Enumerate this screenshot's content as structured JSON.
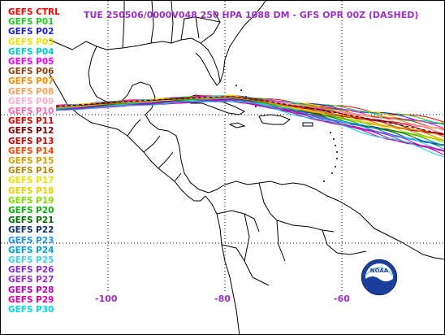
{
  "title": "TUE 250506/0000V048  250 HPA 1088 DM - GFS OPR 00Z (DASHED)",
  "legend": [
    {
      "label": "GEFS CTRL",
      "color": "#ff0000"
    },
    {
      "label": "GEFS P01",
      "color": "#22cc22"
    },
    {
      "label": "GEFS P02",
      "color": "#2020d0"
    },
    {
      "label": "GEFS P03",
      "color": "#f0e000"
    },
    {
      "label": "GEFS P04",
      "color": "#00c8c8"
    },
    {
      "label": "GEFS P05",
      "color": "#ff00ff"
    },
    {
      "label": "GEFS P06",
      "color": "#8b4513"
    },
    {
      "label": "GEFS P07",
      "color": "#ff8c00"
    },
    {
      "label": "GEFS P08",
      "color": "#f4a460"
    },
    {
      "label": "GEFS P09",
      "color": "#ffb0c8"
    },
    {
      "label": "GEFS P10",
      "color": "#ff69b4"
    },
    {
      "label": "GEFS P11",
      "color": "#e00000"
    },
    {
      "label": "GEFS P12",
      "color": "#800000"
    },
    {
      "label": "GEFS P13",
      "color": "#cc0000"
    },
    {
      "label": "GEFS P14",
      "color": "#ff4500"
    },
    {
      "label": "GEFS P15",
      "color": "#d2a000"
    },
    {
      "label": "GEFS P16",
      "color": "#b8860b"
    },
    {
      "label": "GEFS P17",
      "color": "#f0e000"
    },
    {
      "label": "GEFS P18",
      "color": "#e6d200"
    },
    {
      "label": "GEFS P19",
      "color": "#7fdd00"
    },
    {
      "label": "GEFS P20",
      "color": "#10b010"
    },
    {
      "label": "GEFS P21",
      "color": "#007000"
    },
    {
      "label": "GEFS P22",
      "color": "#103070"
    },
    {
      "label": "GEFS P23",
      "color": "#1e90ff"
    },
    {
      "label": "GEFS P24",
      "color": "#00a0e0"
    },
    {
      "label": "GEFS P25",
      "color": "#40d0e8"
    },
    {
      "label": "GEFS P26",
      "color": "#8a2be2"
    },
    {
      "label": "GEFS P27",
      "color": "#9a30c8"
    },
    {
      "label": "GEFS P28",
      "color": "#b000b0"
    },
    {
      "label": "GEFS P29",
      "color": "#e000a0"
    },
    {
      "label": "GEFS P30",
      "color": "#00d8e0"
    }
  ],
  "longitude_labels": [
    "-100",
    "-80",
    "-60"
  ],
  "logo_text": "NOAA"
}
